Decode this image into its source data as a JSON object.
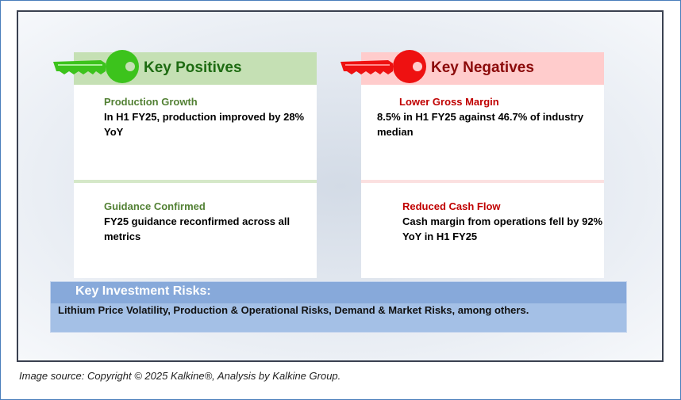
{
  "positives": {
    "title": "Key Positives",
    "items": [
      {
        "title": "Production Growth",
        "text": "In H1 FY25, production improved by 28% YoY"
      },
      {
        "title": "Guidance Confirmed",
        "text": "FY25 guidance reconfirmed across all metrics"
      }
    ]
  },
  "negatives": {
    "title": "Key Negatives",
    "items": [
      {
        "title": "Lower Gross Margin",
        "text": "8.5% in H1 FY25 against 46.7% of industry median"
      },
      {
        "title": "Reduced Cash Flow",
        "text": "Cash margin from operations fell by 92% YoY in H1 FY25"
      }
    ]
  },
  "risks": {
    "title": "Key Investment Risks:",
    "text": "Lithium Price Volatility, Production & Operational Risks, Demand & Market Risks,  among others."
  },
  "caption": "Image source: Copyright © 2025 Kalkine®, Analysis by Kalkine Group.",
  "colors": {
    "pos_header": "#c5e0b4",
    "pos_title": "#538135",
    "pos_key": "#3cc31c",
    "neg_header": "#ffcccc",
    "neg_title": "#c00000",
    "neg_key": "#ee1111",
    "risk_header": "#87a9da",
    "risk_body": "#a4c0e6"
  }
}
